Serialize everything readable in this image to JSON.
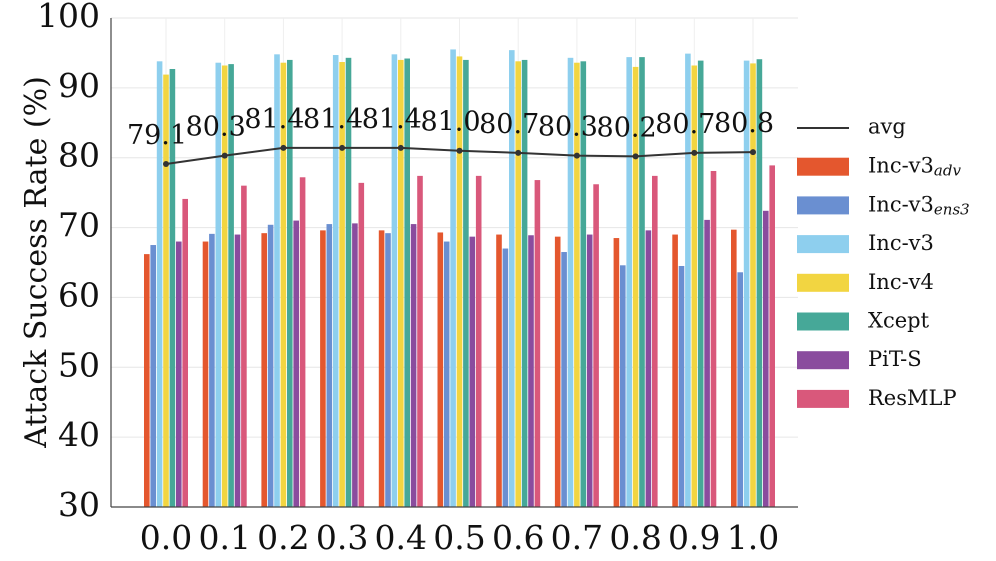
{
  "chart_data": {
    "type": "bar",
    "categories": [
      "0.0",
      "0.1",
      "0.2",
      "0.3",
      "0.4",
      "0.5",
      "0.6",
      "0.7",
      "0.8",
      "0.9",
      "1.0"
    ],
    "ylabel": "Attack Success Rate (%)",
    "ylim": [
      30,
      100
    ],
    "yticks": [
      30,
      40,
      50,
      60,
      70,
      80,
      90,
      100
    ],
    "grid": true,
    "legend_position": "right",
    "series": [
      {
        "name": "Inc-v3",
        "sub": "adv",
        "color": "#e4572e",
        "values": [
          66.2,
          68.0,
          69.2,
          69.6,
          69.6,
          69.3,
          69.0,
          68.7,
          68.5,
          69.0,
          69.7
        ]
      },
      {
        "name": "Inc-v3",
        "sub": "ens3",
        "color": "#6a8fd1",
        "values": [
          67.5,
          69.1,
          70.4,
          70.5,
          69.2,
          68.0,
          67.0,
          66.5,
          64.6,
          64.5,
          63.6
        ]
      },
      {
        "name": "Inc-v3",
        "sub": "",
        "color": "#8ecfee",
        "values": [
          93.8,
          93.6,
          94.8,
          94.7,
          94.8,
          95.5,
          95.4,
          94.3,
          94.4,
          94.9,
          93.9
        ]
      },
      {
        "name": "Inc-v4",
        "sub": "",
        "color": "#f2d541",
        "values": [
          91.9,
          93.2,
          93.6,
          93.7,
          94.0,
          94.5,
          93.8,
          93.6,
          93.0,
          93.2,
          93.5
        ]
      },
      {
        "name": "Xcept",
        "sub": "",
        "color": "#46a898",
        "values": [
          92.7,
          93.4,
          94.0,
          94.3,
          94.2,
          94.0,
          94.0,
          93.8,
          94.4,
          93.9,
          94.1
        ]
      },
      {
        "name": "PiT-S",
        "sub": "",
        "color": "#8a4c9e",
        "values": [
          68.0,
          69.0,
          71.0,
          70.6,
          70.5,
          68.7,
          68.9,
          69.0,
          69.6,
          71.1,
          72.4
        ]
      },
      {
        "name": "ResMLP",
        "sub": "",
        "color": "#d9587b",
        "values": [
          74.1,
          76.0,
          77.2,
          76.4,
          77.4,
          77.4,
          76.8,
          76.2,
          77.4,
          78.1,
          78.9
        ]
      }
    ],
    "avg": {
      "name": "avg",
      "color": "#333333",
      "values": [
        79.1,
        80.3,
        81.4,
        81.4,
        81.4,
        81.0,
        80.7,
        80.3,
        80.2,
        80.7,
        80.8
      ],
      "labels": [
        "79.1",
        "80.3",
        "81.4",
        "81.4",
        "81.4",
        "81.0",
        "80.7",
        "80.3",
        "80.2",
        "80.7",
        "80.8"
      ]
    }
  }
}
